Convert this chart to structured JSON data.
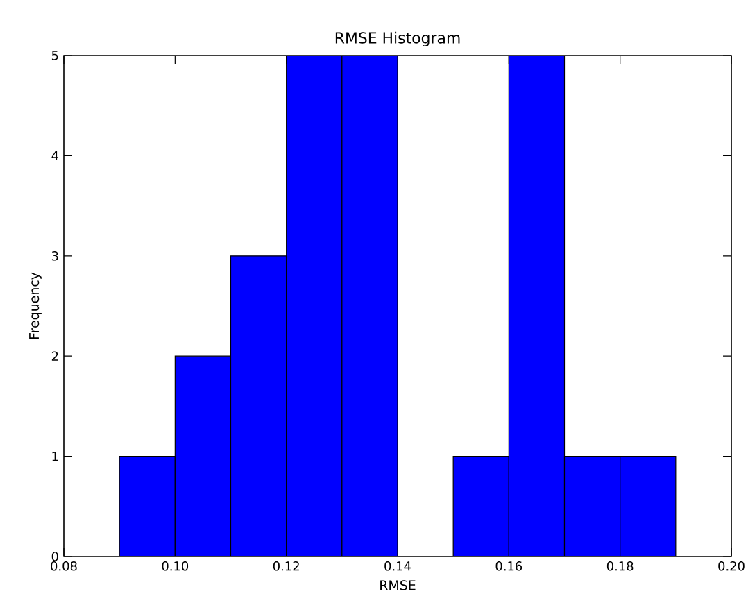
{
  "chart_data": {
    "type": "histogram",
    "title": "RMSE Histogram",
    "xlabel": "RMSE",
    "ylabel": "Frequency",
    "bins": [
      0.09,
      0.1,
      0.11,
      0.12,
      0.13,
      0.14,
      0.15,
      0.16,
      0.17,
      0.18,
      0.19
    ],
    "values": [
      1,
      2,
      3,
      5,
      5,
      0,
      1,
      5,
      1,
      1
    ],
    "color": "#0000ff",
    "xlim": [
      0.08,
      0.2
    ],
    "xticks": [
      {
        "value": 0.08,
        "label": "0.08"
      },
      {
        "value": 0.1,
        "label": "0.10"
      },
      {
        "value": 0.12,
        "label": "0.12"
      },
      {
        "value": 0.14,
        "label": "0.14"
      },
      {
        "value": 0.16,
        "label": "0.16"
      },
      {
        "value": 0.18,
        "label": "0.18"
      },
      {
        "value": 0.2,
        "label": "0.20"
      }
    ],
    "ylim": [
      0,
      5
    ],
    "yticks": [
      0,
      1,
      2,
      3,
      4,
      5
    ]
  }
}
